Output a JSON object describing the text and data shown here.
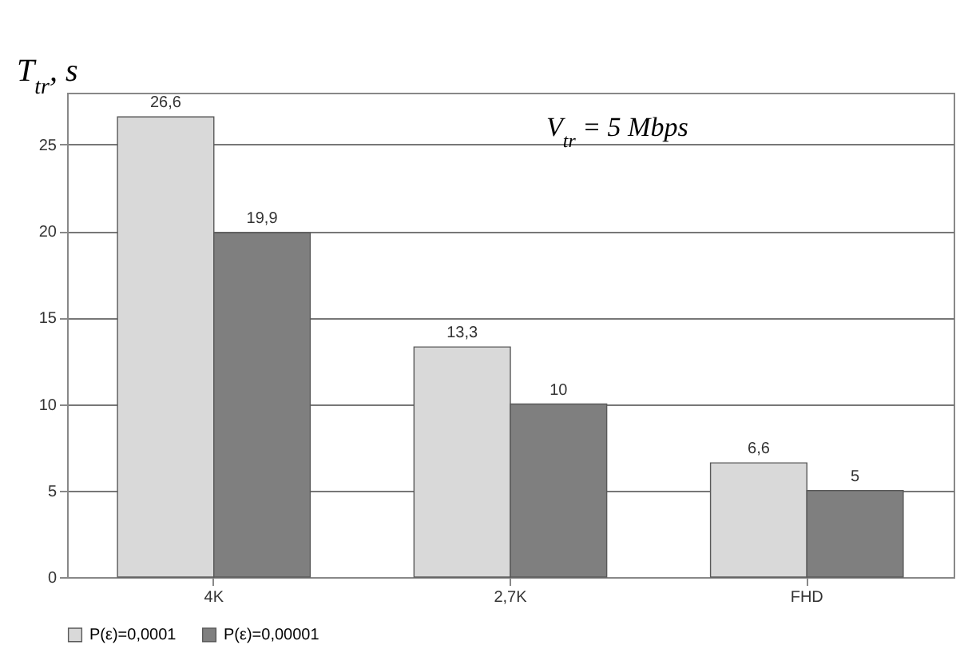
{
  "chart_data": {
    "type": "bar",
    "ylabel": "T$_{tr}$, s",
    "annotations": [
      "V$_{tr}$ = 5 Mbps"
    ],
    "categories": [
      "4K",
      "2,7K",
      "FHD"
    ],
    "series": [
      {
        "name": "P(ε)=0,0001",
        "color": "#d9d9d9",
        "values": [
          26.6,
          13.3,
          6.6
        ],
        "value_labels": [
          "26,6",
          "13,3",
          "6,6"
        ]
      },
      {
        "name": "P(ε)=0,00001",
        "color": "#7f7f7f",
        "values": [
          19.9,
          10,
          5
        ],
        "value_labels": [
          "19,9",
          "10",
          "5"
        ]
      }
    ],
    "ylim": [
      0,
      28
    ],
    "yticks": [
      0,
      5,
      10,
      15,
      20,
      25
    ],
    "grid": "y",
    "legend": "bottom"
  }
}
